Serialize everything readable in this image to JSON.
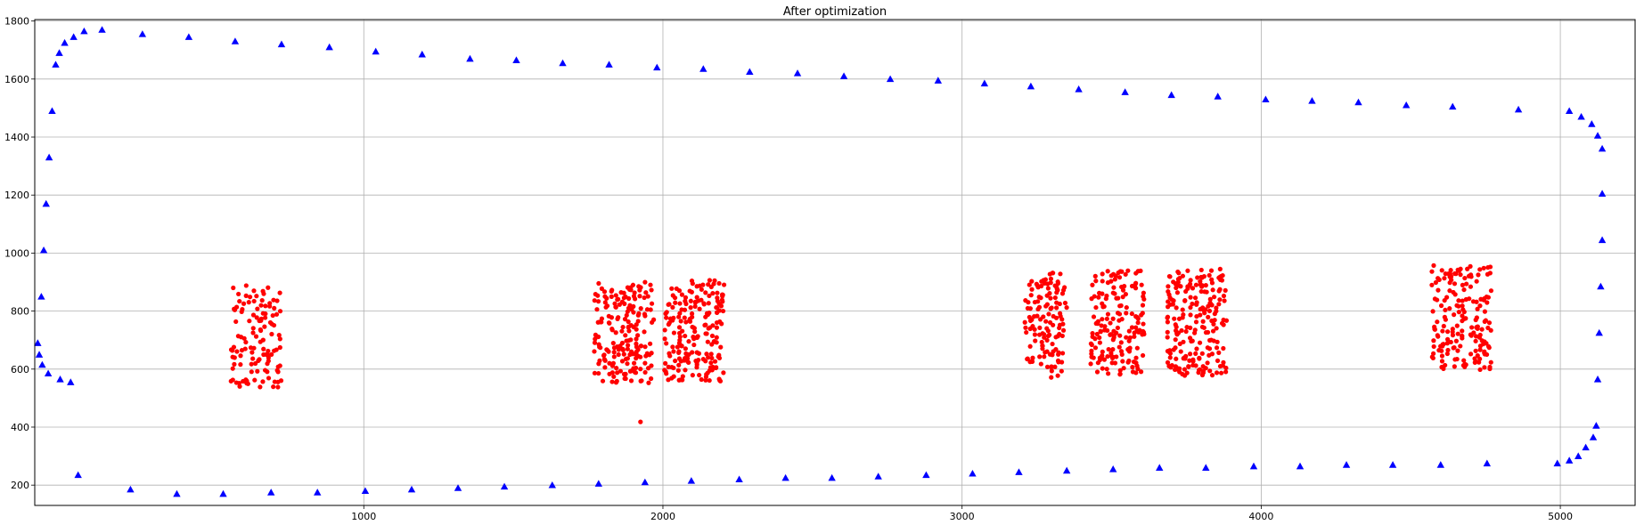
{
  "chart_data": {
    "type": "scatter",
    "title": "After optimization",
    "xlabel": "",
    "ylabel": "",
    "xlim": [
      -100,
      5250
    ],
    "ylim": [
      130,
      1805
    ],
    "xticks": [
      1000,
      2000,
      3000,
      4000,
      5000
    ],
    "xtick_labels": [
      "1000",
      "2000",
      "3000",
      "4000",
      "5000"
    ],
    "yticks": [
      200,
      400,
      600,
      800,
      1000,
      1200,
      1400,
      1600,
      1800
    ],
    "ytick_labels": [
      "200",
      "400",
      "600",
      "800",
      "1000",
      "1200",
      "1400",
      "1600",
      "1800"
    ],
    "grid": true,
    "series": [
      {
        "marker": "triangle",
        "color": "#0000ff",
        "points": [
          [
            -90,
            690
          ],
          [
            -85,
            650
          ],
          [
            -75,
            615
          ],
          [
            -55,
            585
          ],
          [
            -15,
            565
          ],
          [
            20,
            555
          ],
          [
            -78,
            850
          ],
          [
            -70,
            1010
          ],
          [
            -62,
            1170
          ],
          [
            -52,
            1330
          ],
          [
            -42,
            1490
          ],
          [
            -30,
            1650
          ],
          [
            -18,
            1690
          ],
          [
            0,
            1725
          ],
          [
            30,
            1745
          ],
          [
            65,
            1765
          ],
          [
            125,
            1770
          ],
          [
            260,
            1755
          ],
          [
            415,
            1745
          ],
          [
            570,
            1730
          ],
          [
            725,
            1720
          ],
          [
            885,
            1710
          ],
          [
            1040,
            1695
          ],
          [
            1195,
            1685
          ],
          [
            1355,
            1670
          ],
          [
            1510,
            1665
          ],
          [
            1665,
            1655
          ],
          [
            1820,
            1650
          ],
          [
            1980,
            1640
          ],
          [
            2135,
            1635
          ],
          [
            2290,
            1625
          ],
          [
            2450,
            1620
          ],
          [
            2605,
            1610
          ],
          [
            2760,
            1600
          ],
          [
            2920,
            1595
          ],
          [
            3075,
            1585
          ],
          [
            3230,
            1575
          ],
          [
            3390,
            1565
          ],
          [
            3545,
            1555
          ],
          [
            3700,
            1545
          ],
          [
            3855,
            1540
          ],
          [
            4015,
            1530
          ],
          [
            4170,
            1525
          ],
          [
            4325,
            1520
          ],
          [
            4485,
            1510
          ],
          [
            4640,
            1505
          ],
          [
            4860,
            1495
          ],
          [
            5030,
            1490
          ],
          [
            5070,
            1470
          ],
          [
            5105,
            1445
          ],
          [
            5125,
            1405
          ],
          [
            5140,
            1360
          ],
          [
            5140,
            1205
          ],
          [
            5140,
            1045
          ],
          [
            5135,
            885
          ],
          [
            5130,
            725
          ],
          [
            5125,
            565
          ],
          [
            5120,
            405
          ],
          [
            5110,
            365
          ],
          [
            5085,
            330
          ],
          [
            5060,
            300
          ],
          [
            5030,
            285
          ],
          [
            4990,
            275
          ],
          [
            45,
            235
          ],
          [
            220,
            185
          ],
          [
            375,
            170
          ],
          [
            530,
            170
          ],
          [
            690,
            175
          ],
          [
            845,
            175
          ],
          [
            1005,
            180
          ],
          [
            1160,
            185
          ],
          [
            1315,
            190
          ],
          [
            1470,
            195
          ],
          [
            1630,
            200
          ],
          [
            1785,
            205
          ],
          [
            1940,
            210
          ],
          [
            2095,
            215
          ],
          [
            2255,
            220
          ],
          [
            2410,
            225
          ],
          [
            2565,
            225
          ],
          [
            2720,
            230
          ],
          [
            2880,
            235
          ],
          [
            3035,
            240
          ],
          [
            3190,
            245
          ],
          [
            3350,
            250
          ],
          [
            3505,
            255
          ],
          [
            3660,
            260
          ],
          [
            3815,
            260
          ],
          [
            3975,
            265
          ],
          [
            4130,
            265
          ],
          [
            4285,
            270
          ],
          [
            4440,
            270
          ],
          [
            4600,
            270
          ],
          [
            4755,
            275
          ]
        ]
      },
      {
        "marker": "circle",
        "color": "#ff0000",
        "clusters": [
          {
            "cx": 640,
            "cy": 710,
            "w": 170,
            "h": 370,
            "n": 120,
            "seed": 11
          },
          {
            "cx": 1870,
            "cy": 725,
            "w": 200,
            "h": 350,
            "n": 190,
            "seed": 23
          },
          {
            "cx": 2105,
            "cy": 730,
            "w": 200,
            "h": 360,
            "n": 200,
            "seed": 37
          },
          {
            "cx": 3280,
            "cy": 750,
            "w": 140,
            "h": 370,
            "n": 130,
            "seed": 41
          },
          {
            "cx": 3520,
            "cy": 760,
            "w": 180,
            "h": 360,
            "n": 170,
            "seed": 53
          },
          {
            "cx": 3785,
            "cy": 760,
            "w": 200,
            "h": 370,
            "n": 210,
            "seed": 67
          },
          {
            "cx": 4670,
            "cy": 775,
            "w": 200,
            "h": 365,
            "n": 180,
            "seed": 79
          }
        ],
        "points": [
          [
            1925,
            418
          ]
        ]
      }
    ]
  }
}
